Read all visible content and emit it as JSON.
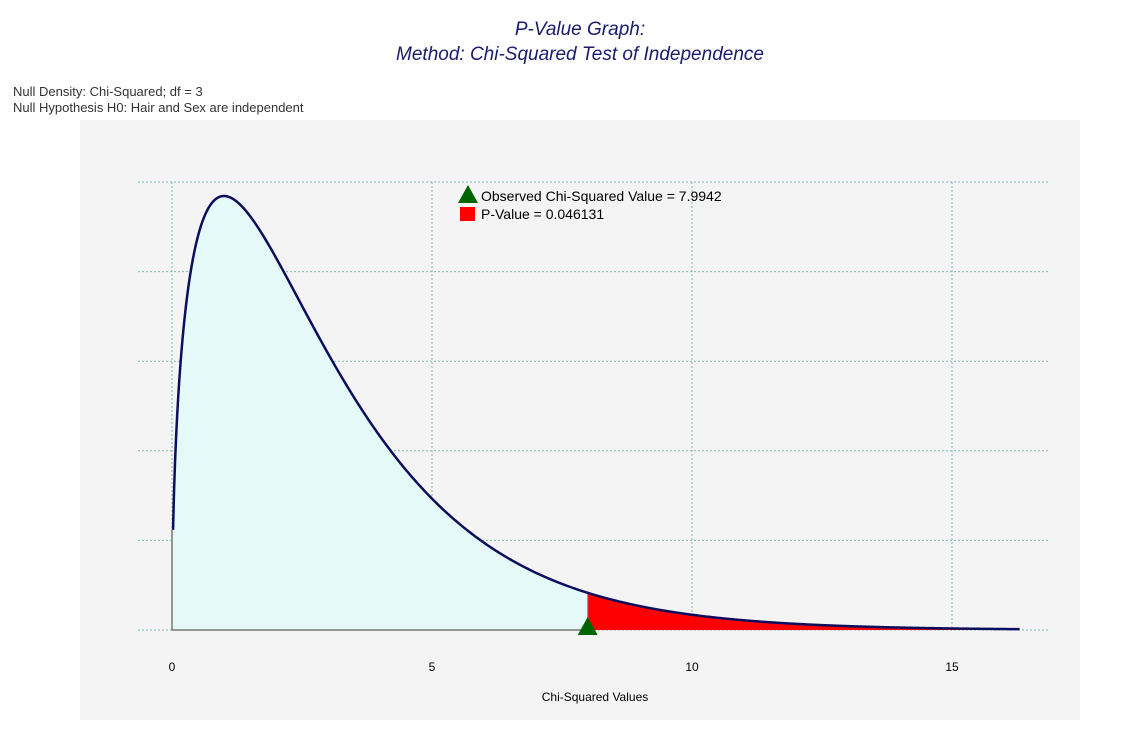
{
  "header": {
    "title_line1": "P-Value Graph:",
    "title_line2": "Method: Chi-Squared Test of Independence",
    "null_density": "Null Density: Chi-Squared; df = 3",
    "null_hypothesis": "Null Hypothesis H0: Hair and Sex are independent"
  },
  "chart_data": {
    "type": "area",
    "distribution": "chi-squared",
    "df": 3,
    "xlabel": "Chi-Squared Values",
    "ylabel": "",
    "xlim": [
      0,
      16.3
    ],
    "x_ticks": [
      0,
      5,
      10,
      15
    ],
    "x_tick_labels": [
      "0",
      "5",
      "10",
      "15"
    ],
    "grid": true,
    "observed_value": 7.9942,
    "p_value": 0.046131,
    "legend": [
      {
        "label": "Observed  Chi-Squared Value = 7.9942",
        "marker": "triangle",
        "color": "#006400"
      },
      {
        "label": "P-Value = 0.046131",
        "marker": "square",
        "color": "#ff0000"
      }
    ],
    "legend_position": "top-center",
    "colors": {
      "curve": "#0d0d5e",
      "body_fill": "#e6f9f9",
      "tail_fill": "#ff0000",
      "marker": "#006400",
      "grid": "#7fb9b3",
      "panel": "#f4f4f4"
    }
  }
}
